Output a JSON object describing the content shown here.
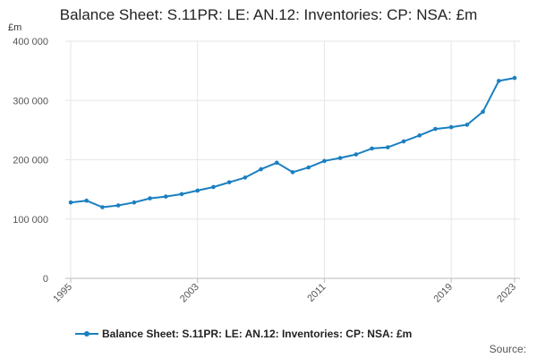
{
  "title": "Balance Sheet: S.11PR: LE: AN.12: Inventories: CP: NSA: £m",
  "unit_label": "£m",
  "legend_label": "Balance Sheet: S.11PR: LE: AN.12: Inventories: CP: NSA: £m",
  "source_label": "Source:",
  "colors": {
    "series": "#1a7fc1",
    "grid": "#e6e6e6",
    "axis": "#bbbbbb"
  },
  "chart_data": {
    "type": "line",
    "title": "Balance Sheet: S.11PR: LE: AN.12: Inventories: CP: NSA: £m",
    "xlabel": "",
    "ylabel": "£m",
    "ylim": [
      0,
      400000
    ],
    "yticks": [
      0,
      100000,
      200000,
      300000,
      400000
    ],
    "ytick_labels": [
      "0",
      "100 000",
      "200 000",
      "300 000",
      "400 000"
    ],
    "xlim": [
      1995,
      2023
    ],
    "xticks": [
      1995,
      2003,
      2011,
      2019,
      2023
    ],
    "xtick_labels": [
      "1995",
      "2003",
      "2011",
      "2019",
      "2023"
    ],
    "grid": true,
    "legend": "bottom",
    "series": [
      {
        "name": "Balance Sheet: S.11PR: LE: AN.12: Inventories: CP: NSA: £m",
        "x": [
          1995,
          1996,
          1997,
          1998,
          1999,
          2000,
          2001,
          2002,
          2003,
          2004,
          2005,
          2006,
          2007,
          2008,
          2009,
          2010,
          2011,
          2012,
          2013,
          2014,
          2015,
          2016,
          2017,
          2018,
          2019,
          2020,
          2021,
          2022,
          2023
        ],
        "values": [
          128000,
          131000,
          120000,
          123000,
          128000,
          135000,
          138000,
          142000,
          148000,
          154000,
          162000,
          170000,
          184000,
          195000,
          179000,
          187000,
          198000,
          203000,
          209000,
          219000,
          221000,
          231000,
          241000,
          252000,
          255000,
          259000,
          281000,
          333000,
          338000
        ]
      }
    ]
  }
}
